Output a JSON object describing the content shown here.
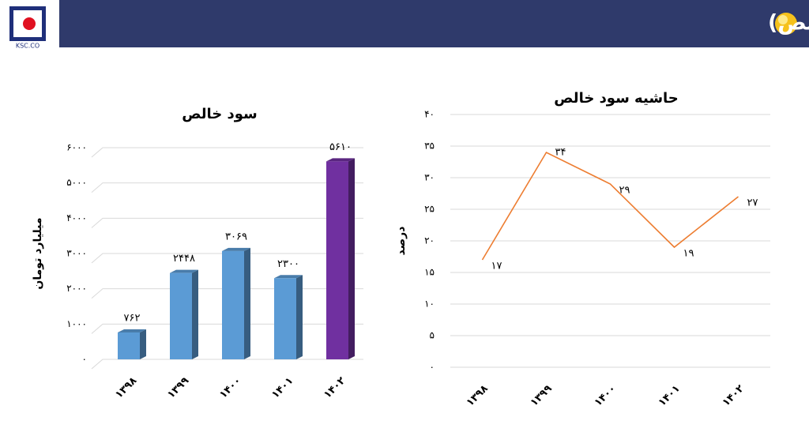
{
  "header": {
    "title": "روند سود و زیان (حاشیه و سود خالص)",
    "logo_text": "KSC.CO"
  },
  "chart_data": [
    {
      "type": "bar",
      "title": "سود خالص",
      "y_label": "میلیارد تومان",
      "categories": [
        "۱۳۹۸",
        "۱۳۹۹",
        "۱۴۰۰",
        "۱۴۰۱",
        "۱۴۰۲"
      ],
      "values": [
        762,
        2448,
        3069,
        2300,
        5610
      ],
      "value_labels": [
        "۷۶۲",
        "۲۴۴۸",
        "۳۰۶۹",
        "۲۳۰۰",
        "۵۶۱۰"
      ],
      "colors": [
        "#5b9bd5",
        "#5b9bd5",
        "#5b9bd5",
        "#5b9bd5",
        "#7030a0"
      ],
      "ylim": [
        0,
        6000
      ],
      "yticks": [
        {
          "value": 0,
          "label": "۰"
        },
        {
          "value": 1000,
          "label": "۱۰۰۰"
        },
        {
          "value": 2000,
          "label": "۲۰۰۰"
        },
        {
          "value": 3000,
          "label": "۳۰۰۰"
        },
        {
          "value": 4000,
          "label": "۴۰۰۰"
        },
        {
          "value": 5000,
          "label": "۵۰۰۰"
        },
        {
          "value": 6000,
          "label": "۶۰۰۰"
        }
      ],
      "grid": true
    },
    {
      "type": "line",
      "title": "حاشیه سود خالص",
      "y_label": "درصد",
      "categories": [
        "۱۳۹۸",
        "۱۳۹۹",
        "۱۴۰۰",
        "۱۴۰۱",
        "۱۴۰۲"
      ],
      "values": [
        17,
        34,
        29,
        19,
        27
      ],
      "value_labels": [
        "۱۷",
        "۳۴",
        "۲۹",
        "۱۹",
        "۲۷"
      ],
      "color": "#ed7d31",
      "ylim": [
        0,
        40
      ],
      "yticks": [
        {
          "value": 0,
          "label": "۰"
        },
        {
          "value": 5,
          "label": "۵"
        },
        {
          "value": 10,
          "label": "۱۰"
        },
        {
          "value": 15,
          "label": "۱۵"
        },
        {
          "value": 20,
          "label": "۲۰"
        },
        {
          "value": 25,
          "label": "۲۵"
        },
        {
          "value": 30,
          "label": "۳۰"
        },
        {
          "value": 35,
          "label": "۳۵"
        },
        {
          "value": 40,
          "label": "۴۰"
        }
      ],
      "grid": true
    }
  ]
}
